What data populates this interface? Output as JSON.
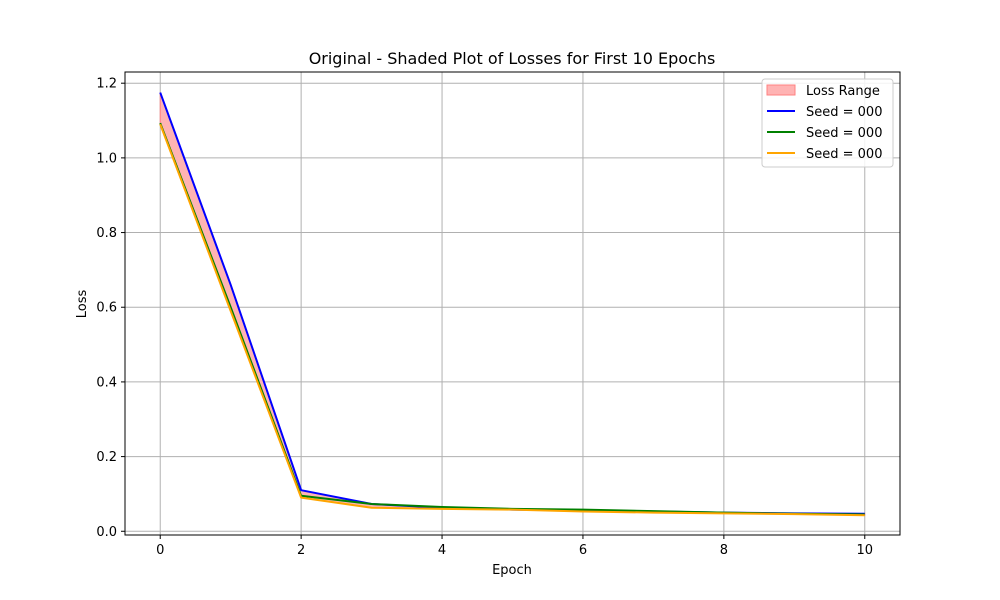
{
  "chart_data": {
    "type": "line",
    "title": "Original - Shaded Plot of Losses for First 10 Epochs",
    "xlabel": "Epoch",
    "ylabel": "Loss",
    "xlim": [
      -0.5,
      10.5
    ],
    "ylim": [
      -0.01,
      1.23
    ],
    "xticks": [
      0,
      2,
      4,
      6,
      8,
      10
    ],
    "yticks": [
      0.0,
      0.2,
      0.4,
      0.6,
      0.8,
      1.0,
      1.2
    ],
    "grid": true,
    "legend_position": "top-right",
    "x": [
      0,
      1,
      2,
      3,
      4,
      5,
      6,
      7,
      8,
      9,
      10
    ],
    "shaded_range": {
      "name": "Loss Range",
      "color": "#ffb3b3",
      "edge_color": "#ff8080"
    },
    "series": [
      {
        "name": "Seed = 000",
        "color": "#0000ff",
        "values": [
          1.175,
          0.66,
          0.11,
          0.073,
          0.063,
          0.058,
          0.056,
          0.053,
          0.05,
          0.048,
          0.047
        ]
      },
      {
        "name": "Seed = 000",
        "color": "#008000",
        "values": [
          1.093,
          0.6,
          0.095,
          0.073,
          0.065,
          0.06,
          0.058,
          0.054,
          0.05,
          0.047,
          0.045
        ]
      },
      {
        "name": "Seed = 000",
        "color": "#ffa500",
        "values": [
          1.09,
          0.59,
          0.09,
          0.063,
          0.06,
          0.058,
          0.053,
          0.05,
          0.048,
          0.046,
          0.043
        ]
      }
    ]
  }
}
